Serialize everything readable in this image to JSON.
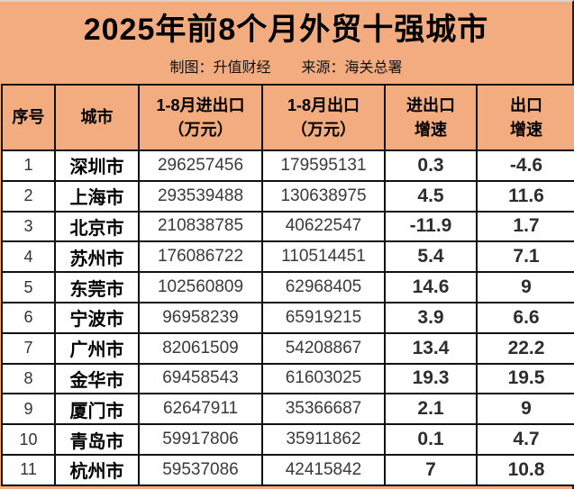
{
  "title": "2025年前8个月外贸十强城市",
  "subtitle": {
    "maker": "制图：升值财经",
    "source": "来源：海关总署"
  },
  "colors": {
    "background": "#F2AC80",
    "table_border": "#111111",
    "row_background": "#FFFFFF",
    "title_text": "#000000"
  },
  "chart_data": {
    "type": "table",
    "title": "2025年前8个月外贸十强城市",
    "columns": [
      {
        "id": "rank",
        "label": "序号"
      },
      {
        "id": "city",
        "label": "城市"
      },
      {
        "id": "import_export",
        "label": "1-8月进出口\n（万元）"
      },
      {
        "id": "export",
        "label": "1-8月出口\n（万元）"
      },
      {
        "id": "import_export_growth",
        "label": "进出口\n增速"
      },
      {
        "id": "export_growth",
        "label": "出口\n增速"
      }
    ],
    "rows": [
      {
        "rank": "1",
        "city": "深圳市",
        "import_export": "296257456",
        "export": "179595131",
        "import_export_growth": "0.3",
        "export_growth": "-4.6"
      },
      {
        "rank": "2",
        "city": "上海市",
        "import_export": "293539488",
        "export": "130638975",
        "import_export_growth": "4.5",
        "export_growth": "11.6"
      },
      {
        "rank": "3",
        "city": "北京市",
        "import_export": "210838785",
        "export": "40622547",
        "import_export_growth": "-11.9",
        "export_growth": "1.7"
      },
      {
        "rank": "4",
        "city": "苏州市",
        "import_export": "176086722",
        "export": "110514451",
        "import_export_growth": "5.4",
        "export_growth": "7.1"
      },
      {
        "rank": "5",
        "city": "东莞市",
        "import_export": "102560809",
        "export": "62968405",
        "import_export_growth": "14.6",
        "export_growth": "9"
      },
      {
        "rank": "6",
        "city": "宁波市",
        "import_export": "96958239",
        "export": "65919215",
        "import_export_growth": "3.9",
        "export_growth": "6.6"
      },
      {
        "rank": "7",
        "city": "广州市",
        "import_export": "82061509",
        "export": "54208867",
        "import_export_growth": "13.4",
        "export_growth": "22.2"
      },
      {
        "rank": "8",
        "city": "金华市",
        "import_export": "69458543",
        "export": "61603025",
        "import_export_growth": "19.3",
        "export_growth": "19.5"
      },
      {
        "rank": "9",
        "city": "厦门市",
        "import_export": "62647911",
        "export": "35366687",
        "import_export_growth": "2.1",
        "export_growth": "9"
      },
      {
        "rank": "10",
        "city": "青岛市",
        "import_export": "59917806",
        "export": "35911862",
        "import_export_growth": "0.1",
        "export_growth": "4.7"
      },
      {
        "rank": "11",
        "city": "杭州市",
        "import_export": "59537086",
        "export": "42415842",
        "import_export_growth": "7",
        "export_growth": "10.8"
      }
    ]
  }
}
